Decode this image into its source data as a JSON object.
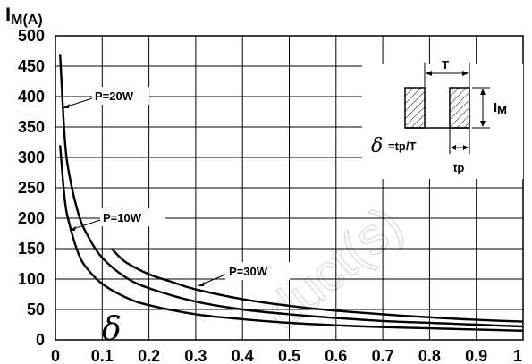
{
  "chart_data": {
    "type": "line",
    "title": "",
    "ylabel_main": "I",
    "ylabel_sub": "M(A)",
    "xlim": [
      0,
      1
    ],
    "ylim": [
      0,
      500
    ],
    "x_ticks": [
      "0",
      "0.1",
      "0.2",
      "0.3",
      "0.4",
      "0.5",
      "0.6",
      "0.7",
      "0.8",
      "0.9",
      "1"
    ],
    "y_ticks": [
      "0",
      "50",
      "100",
      "150",
      "200",
      "250",
      "300",
      "350",
      "400",
      "450",
      "500"
    ],
    "grid": true,
    "series": [
      {
        "name": "P=10W",
        "x": [
          0.01,
          0.02,
          0.03,
          0.05,
          0.07,
          0.1,
          0.15,
          0.2,
          0.3,
          0.4,
          0.5,
          0.6,
          0.7,
          0.8,
          0.9,
          1.0
        ],
        "y": [
          320,
          230,
          190,
          140,
          115,
          92,
          70,
          57,
          42,
          34,
          28,
          24,
          21,
          19,
          17,
          15
        ]
      },
      {
        "name": "P=20W",
        "x": [
          0.01,
          0.02,
          0.03,
          0.05,
          0.07,
          0.1,
          0.15,
          0.2,
          0.3,
          0.4,
          0.5,
          0.6,
          0.7,
          0.8,
          0.9,
          1.0
        ],
        "y": [
          470,
          330,
          270,
          205,
          170,
          135,
          103,
          85,
          63,
          50,
          42,
          36,
          31,
          28,
          25,
          22
        ]
      },
      {
        "name": "P=30W",
        "x": [
          0.12,
          0.15,
          0.2,
          0.25,
          0.3,
          0.4,
          0.5,
          0.6,
          0.7,
          0.8,
          0.9,
          1.0
        ],
        "y": [
          150,
          128,
          108,
          95,
          83,
          67,
          56,
          48,
          42,
          37,
          33,
          30
        ]
      }
    ],
    "labels": {
      "p20": "P=20W",
      "p10": "P=10W",
      "p30": "P=30W"
    },
    "inset": {
      "period": "T",
      "amplitude_main": "I",
      "amplitude_sub": "M",
      "duty_formula": "=tp/T",
      "pulse_width": "tp"
    },
    "delta_symbol": "δ",
    "watermark": "duct(s)"
  }
}
